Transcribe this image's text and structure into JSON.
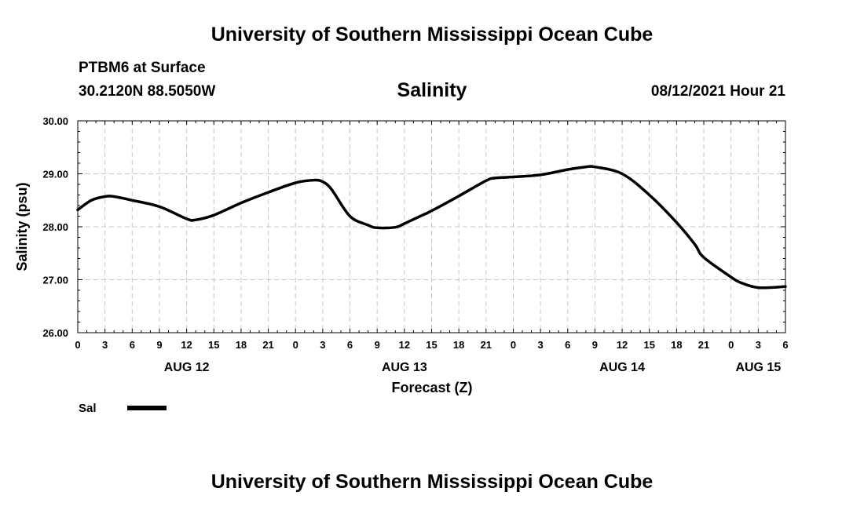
{
  "header": {
    "title": "University of Southern Mississippi Ocean Cube",
    "station": "PTBM6 at Surface",
    "coords": "30.2120N  88.5050W",
    "forecast_time": "08/12/2021 Hour 21"
  },
  "footer": {
    "title": "University of Southern Mississippi Ocean Cube"
  },
  "chart_data": {
    "type": "line",
    "title": "Salinity",
    "xlabel": "Forecast (Z)",
    "ylabel": "Salinity (psu)",
    "ylim": [
      26.0,
      30.0
    ],
    "xlim": [
      0,
      78
    ],
    "y_ticks": [
      "26.00",
      "27.00",
      "28.00",
      "29.00",
      "30.00"
    ],
    "x_tick_labels": [
      "0",
      "3",
      "6",
      "9",
      "12",
      "15",
      "18",
      "21",
      "0",
      "3",
      "6",
      "9",
      "12",
      "15",
      "18",
      "21",
      "0",
      "3",
      "6",
      "9",
      "12",
      "15",
      "18",
      "21",
      "0",
      "3",
      "6"
    ],
    "day_labels": [
      {
        "label": "AUG 12",
        "hour": 12
      },
      {
        "label": "AUG 13",
        "hour": 36
      },
      {
        "label": "AUG 14",
        "hour": 60
      },
      {
        "label": "AUG 15",
        "hour": 75
      }
    ],
    "grid": true,
    "legend": {
      "position": "bottom-left",
      "entries": [
        {
          "name": "Sal",
          "color": "#000000"
        }
      ]
    },
    "series": [
      {
        "name": "Sal",
        "color": "#000000",
        "x": [
          0,
          1.5,
          3,
          4,
          6,
          9,
          12,
          13,
          15,
          18,
          21,
          24,
          26,
          27,
          28,
          30,
          32,
          33,
          35,
          36,
          38,
          39,
          42,
          45,
          46,
          48,
          51,
          54,
          56,
          57,
          60,
          63,
          66,
          68,
          69,
          72,
          73,
          75,
          78
        ],
        "values": [
          28.32,
          28.5,
          28.57,
          28.57,
          28.5,
          28.38,
          28.15,
          28.13,
          28.22,
          28.45,
          28.65,
          28.83,
          28.88,
          28.85,
          28.7,
          28.2,
          28.03,
          27.98,
          27.99,
          28.06,
          28.22,
          28.3,
          28.58,
          28.87,
          28.92,
          28.94,
          28.98,
          29.08,
          29.13,
          29.13,
          29.0,
          28.6,
          28.08,
          27.67,
          27.42,
          27.05,
          26.95,
          26.85,
          26.87
        ]
      }
    ]
  }
}
